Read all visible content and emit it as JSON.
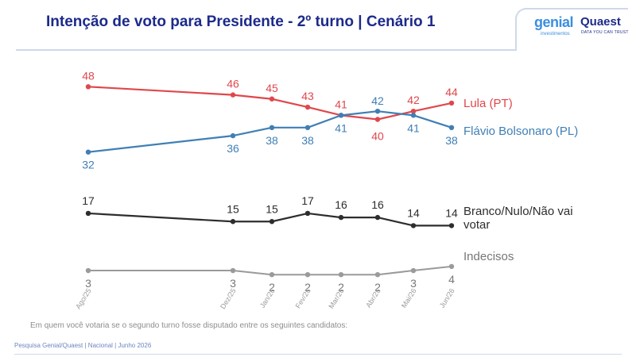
{
  "header": {
    "title": "Intenção de voto para Presidente - 2º turno | Cenário 1",
    "logo_genial": "genial",
    "logo_genial_sub": "investimentos",
    "logo_quaest": "Quaest",
    "logo_quaest_sub": "DATA YOU CAN TRUST"
  },
  "question": "Em quem você votaria se o segundo turno fosse disputado entre os seguintes candidatos:",
  "footer": "Pesquisa Genial/Quaest | Nacional | Junho 2026",
  "colors": {
    "lula": "#e0474c",
    "flavio": "#3f7fb5",
    "branco": "#2d2d2d",
    "indecisos": "#9a9a9a",
    "title": "#1c2a8a"
  },
  "chart_data": {
    "type": "line",
    "x": [
      "Ago/25",
      "Dez/25",
      "Jan/26",
      "Fev/26",
      "Mar/26",
      "Abr/26",
      "Mai/26",
      "Jun/26"
    ],
    "ylim": [
      0,
      50
    ],
    "grid": false,
    "series": [
      {
        "name": "Lula (PT)",
        "values": [
          48,
          46,
          45,
          43,
          41,
          40,
          42,
          44
        ]
      },
      {
        "name": "Flávio Bolsonaro (PL)",
        "values": [
          32,
          36,
          38,
          38,
          41,
          42,
          41,
          38
        ]
      },
      {
        "name": "Branco/Nulo/Não vai votar",
        "values": [
          17,
          15,
          15,
          17,
          16,
          16,
          14,
          14
        ]
      },
      {
        "name": "Indecisos",
        "values": [
          3,
          3,
          2,
          2,
          2,
          2,
          3,
          4
        ]
      }
    ]
  }
}
